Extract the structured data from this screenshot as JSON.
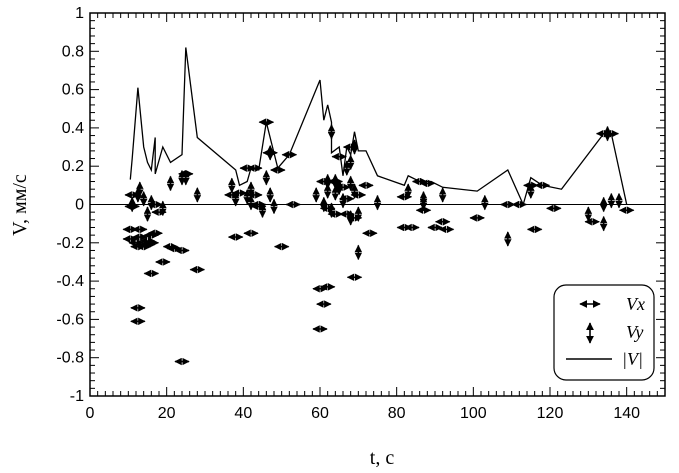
{
  "chart_data": {
    "type": "scatter",
    "xlabel": "t, c",
    "ylabel": "V, мм/с",
    "xlim": [
      0,
      150
    ],
    "ylim": [
      -1,
      1
    ],
    "x_ticks": [
      0,
      20,
      40,
      60,
      80,
      100,
      120,
      140
    ],
    "y_ticks": [
      -1,
      -0.8,
      -0.6,
      -0.4,
      -0.2,
      0,
      0.2,
      0.4,
      0.6,
      0.8,
      1
    ],
    "y_tick_labels": [
      "-1",
      "-0.8",
      "-0.6",
      "-0.4",
      "-0.2",
      "0",
      "0.2",
      "0.4",
      "0.6",
      "0.8",
      "1"
    ],
    "zero_line": true,
    "legend": {
      "placement": "bottom-right",
      "entries": [
        {
          "label": "Vx",
          "marker": "horizontal-arrow"
        },
        {
          "label": "Vy",
          "marker": "vertical-arrow"
        },
        {
          "label": "|V|",
          "marker": "line"
        }
      ]
    },
    "series": [
      {
        "name": "Vx",
        "marker": "horizontal-arrow",
        "points": [
          [
            10.5,
            -0.13
          ],
          [
            10.5,
            -0.18
          ],
          [
            11,
            0.05
          ],
          [
            11,
            -0.01
          ],
          [
            12,
            -0.2
          ],
          [
            12.5,
            -0.22
          ],
          [
            12.5,
            -0.54
          ],
          [
            12.5,
            -0.61
          ],
          [
            13,
            -0.13
          ],
          [
            13,
            -0.17
          ],
          [
            14,
            -0.22
          ],
          [
            15,
            -0.19
          ],
          [
            15,
            -0.21
          ],
          [
            16,
            -0.16
          ],
          [
            16,
            -0.2
          ],
          [
            16,
            -0.36
          ],
          [
            17,
            -0.15
          ],
          [
            17,
            0
          ],
          [
            18,
            -0.04
          ],
          [
            19,
            -0.3
          ],
          [
            21,
            -0.22
          ],
          [
            22,
            -0.23
          ],
          [
            24,
            -0.24
          ],
          [
            24,
            -0.82
          ],
          [
            25,
            0.16
          ],
          [
            28,
            -0.34
          ],
          [
            38,
            -0.17
          ],
          [
            37,
            0.05
          ],
          [
            39,
            0.06
          ],
          [
            41,
            0.19
          ],
          [
            42,
            -0.15
          ],
          [
            43,
            0.19
          ],
          [
            43,
            0.05
          ],
          [
            44,
            -0.01
          ],
          [
            44,
            0
          ],
          [
            47,
            0.27
          ],
          [
            46,
            0.43
          ],
          [
            49,
            0.18
          ],
          [
            50,
            -0.22
          ],
          [
            52,
            0.26
          ],
          [
            53,
            0
          ],
          [
            60,
            -0.44
          ],
          [
            60,
            -0.65
          ],
          [
            61,
            0.12
          ],
          [
            61,
            -0.52
          ],
          [
            62,
            -0.43
          ],
          [
            62,
            -0.02
          ],
          [
            64,
            0.12
          ],
          [
            64,
            -0.05
          ],
          [
            65,
            0.25
          ],
          [
            66,
            0.09
          ],
          [
            67,
            0.03
          ],
          [
            67,
            -0.05
          ],
          [
            68,
            0.3
          ],
          [
            69,
            -0.38
          ],
          [
            69,
            -0.07
          ],
          [
            70,
            0.05
          ],
          [
            72,
            0.1
          ],
          [
            73,
            -0.15
          ],
          [
            82,
            0.04
          ],
          [
            82,
            -0.12
          ],
          [
            84,
            -0.12
          ],
          [
            86,
            0.12
          ],
          [
            87,
            -0.03
          ],
          [
            88,
            0.11
          ],
          [
            90,
            -0.12
          ],
          [
            92,
            -0.09
          ],
          [
            93,
            -0.13
          ],
          [
            101,
            -0.07
          ],
          [
            109,
            0
          ],
          [
            112,
            0
          ],
          [
            115,
            0.1
          ],
          [
            116,
            -0.13
          ],
          [
            118,
            0.1
          ],
          [
            121,
            -0.02
          ],
          [
            131,
            -0.09
          ],
          [
            134,
            0.37
          ],
          [
            136,
            0.37
          ],
          [
            140,
            -0.03
          ]
        ]
      },
      {
        "name": "Vy",
        "marker": "vertical-arrow",
        "points": [
          [
            11,
            0
          ],
          [
            12.5,
            0.05
          ],
          [
            13,
            0.08
          ],
          [
            14,
            0.03
          ],
          [
            15,
            -0.05
          ],
          [
            16,
            0.01
          ],
          [
            19,
            -0.02
          ],
          [
            21,
            0.11
          ],
          [
            24,
            0.14
          ],
          [
            25,
            0.14
          ],
          [
            28,
            0.05
          ],
          [
            37,
            0.1
          ],
          [
            38,
            0.03
          ],
          [
            41,
            0.04
          ],
          [
            42,
            0.08
          ],
          [
            42,
            0.01
          ],
          [
            45,
            -0.03
          ],
          [
            46,
            0.14
          ],
          [
            47,
            0.27
          ],
          [
            47,
            0.05
          ],
          [
            48,
            -0.01
          ],
          [
            59,
            0.05
          ],
          [
            61,
            0
          ],
          [
            62,
            0.12
          ],
          [
            62,
            0.07
          ],
          [
            63,
            0.38
          ],
          [
            63,
            -0.03
          ],
          [
            64,
            0.12
          ],
          [
            64,
            0.06
          ],
          [
            65,
            0.09
          ],
          [
            66,
            0.02
          ],
          [
            67,
            0.19
          ],
          [
            68,
            0.22
          ],
          [
            68,
            0.11
          ],
          [
            68,
            -0.07
          ],
          [
            69,
            0.3
          ],
          [
            69,
            0.07
          ],
          [
            70,
            -0.05
          ],
          [
            70,
            -0.25
          ],
          [
            75,
            0.01
          ],
          [
            83,
            0.07
          ],
          [
            87,
            0.03
          ],
          [
            87,
            0.01
          ],
          [
            92,
            0.05
          ],
          [
            103,
            0.01
          ],
          [
            109,
            -0.18
          ],
          [
            115,
            0.07
          ],
          [
            130,
            -0.05
          ],
          [
            134,
            0
          ],
          [
            134,
            -0.1
          ],
          [
            135,
            0.37
          ],
          [
            136,
            0.02
          ],
          [
            138,
            0.02
          ]
        ]
      },
      {
        "name": "|V|",
        "marker": "line",
        "points": [
          [
            10.5,
            0.13
          ],
          [
            11,
            0.24
          ],
          [
            12.5,
            0.61
          ],
          [
            14,
            0.3
          ],
          [
            15,
            0.22
          ],
          [
            16,
            0.18
          ],
          [
            17,
            0.35
          ],
          [
            17,
            0.16
          ],
          [
            19,
            0.3
          ],
          [
            21,
            0.22
          ],
          [
            24,
            0.26
          ],
          [
            25,
            0.82
          ],
          [
            28,
            0.35
          ],
          [
            38,
            0.18
          ],
          [
            39,
            0.1
          ],
          [
            41,
            0.12
          ],
          [
            42,
            0.19
          ],
          [
            44,
            0.18
          ],
          [
            46,
            0.43
          ],
          [
            49,
            0.19
          ],
          [
            52,
            0.26
          ],
          [
            60,
            0.65
          ],
          [
            61,
            0.44
          ],
          [
            62,
            0.52
          ],
          [
            63,
            0.43
          ],
          [
            63,
            0.27
          ],
          [
            65,
            0.3
          ],
          [
            66,
            0.15
          ],
          [
            67,
            0.3
          ],
          [
            68,
            0.26
          ],
          [
            69,
            0.38
          ],
          [
            70,
            0.28
          ],
          [
            72,
            0.28
          ],
          [
            75,
            0.15
          ],
          [
            82,
            0.1
          ],
          [
            83,
            0.15
          ],
          [
            86,
            0.12
          ],
          [
            89,
            0.12
          ],
          [
            92,
            0.09
          ],
          [
            101,
            0.07
          ],
          [
            109,
            0.18
          ],
          [
            113,
            0
          ],
          [
            115,
            0.14
          ],
          [
            118,
            0.1
          ],
          [
            123,
            0.08
          ],
          [
            134,
            0.37
          ],
          [
            136,
            0.37
          ],
          [
            140,
            0
          ]
        ]
      }
    ]
  }
}
